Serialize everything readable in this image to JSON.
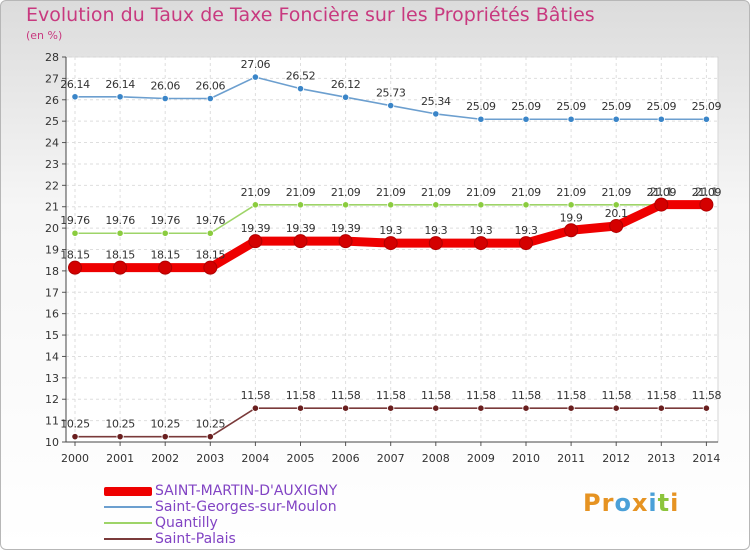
{
  "title": "Evolution du Taux de Taxe Foncière sur les Propriétés Bâties",
  "unit_label": "(en %)",
  "logo": {
    "text": "Proxiti",
    "colors": [
      "#e69322",
      "#e69322",
      "#4aa0d8",
      "#e69322",
      "#4aa0d8",
      "#8cc43c",
      "#e69322"
    ]
  },
  "chart_data": {
    "type": "line",
    "title": "Evolution du Taux de Taxe Foncière sur les Propriétés Bâties",
    "ylabel": "(en %)",
    "xlabel": "",
    "ylim": [
      10,
      28
    ],
    "yticks": [
      "10",
      "11",
      "12",
      "13",
      "14",
      "15",
      "16",
      "17",
      "18",
      "19",
      "20",
      "21",
      "22",
      "23",
      "24",
      "25",
      "26",
      "27",
      "28"
    ],
    "grid": true,
    "legend_position": "bottom-left",
    "categories": [
      "2000",
      "2001",
      "2002",
      "2003",
      "2004",
      "2005",
      "2006",
      "2007",
      "2008",
      "2009",
      "2010",
      "2011",
      "2012",
      "2013",
      "2014"
    ],
    "series": [
      {
        "name": "SAINT-MARTIN-D'AUXIGNY",
        "color": "#ee0000",
        "marker": "#d40000",
        "thick": true,
        "values": [
          18.15,
          18.15,
          18.15,
          18.15,
          19.39,
          19.39,
          19.39,
          19.3,
          19.3,
          19.3,
          19.3,
          19.9,
          20.1,
          21.1,
          21.1
        ],
        "labels": [
          "18.15",
          "18.15",
          "18.15",
          "18.15",
          "19.39",
          "19.39",
          "19.39",
          "19.3",
          "19.3",
          "19.3",
          "19.3",
          "19.9",
          "20.1",
          "21.1",
          "21.1"
        ]
      },
      {
        "name": "Saint-Georges-sur-Moulon",
        "color": "#6c9fcf",
        "marker": "#3a85c8",
        "thick": false,
        "values": [
          26.14,
          26.14,
          26.06,
          26.06,
          27.06,
          26.52,
          26.12,
          25.73,
          25.34,
          25.09,
          25.09,
          25.09,
          25.09,
          25.09,
          25.09
        ],
        "labels": [
          "26.14",
          "26.14",
          "26.06",
          "26.06",
          "27.06",
          "26.52",
          "26.12",
          "25.73",
          "25.34",
          "25.09",
          "25.09",
          "25.09",
          "25.09",
          "25.09",
          "25.09"
        ]
      },
      {
        "name": "Quantilly",
        "color": "#9ed468",
        "marker": "#8bcc3f",
        "thick": false,
        "values": [
          19.76,
          19.76,
          19.76,
          19.76,
          21.09,
          21.09,
          21.09,
          21.09,
          21.09,
          21.09,
          21.09,
          21.09,
          21.09,
          21.09,
          21.09
        ],
        "labels": [
          "19.76",
          "19.76",
          "19.76",
          "19.76",
          "21.09",
          "21.09",
          "21.09",
          "21.09",
          "21.09",
          "21.09",
          "21.09",
          "21.09",
          "21.09",
          "21.09",
          "21.09"
        ]
      },
      {
        "name": "Saint-Palais",
        "color": "#7a3a3a",
        "marker": "#6a1f1f",
        "thick": false,
        "values": [
          10.25,
          10.25,
          10.25,
          10.25,
          11.58,
          11.58,
          11.58,
          11.58,
          11.58,
          11.58,
          11.58,
          11.58,
          11.58,
          11.58,
          11.58
        ],
        "labels": [
          "10.25",
          "10.25",
          "10.25",
          "10.25",
          "11.58",
          "11.58",
          "11.58",
          "11.58",
          "11.58",
          "11.58",
          "11.58",
          "11.58",
          "11.58",
          "11.58",
          "11.58"
        ]
      }
    ]
  }
}
